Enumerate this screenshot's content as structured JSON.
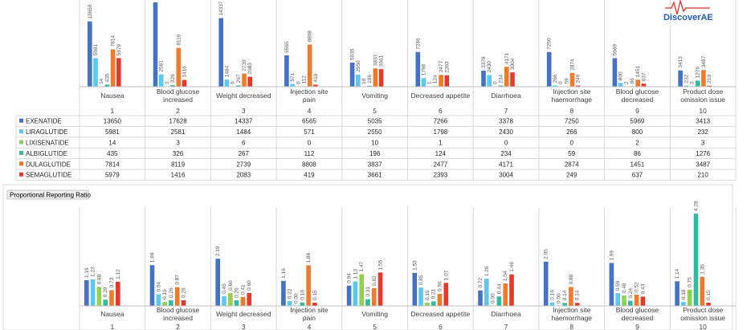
{
  "brand": {
    "logo_text": "DiscoverAE"
  },
  "colors": {
    "EXENATIDE": "#4472c4",
    "LIRAGLUTIDE": "#5bc8f0",
    "LIXISENATIDE": "#92d050",
    "ALBIGLUTIDE": "#33bba0",
    "DULAGLUTIDE": "#f07a28",
    "SEMAGLUTIDE": "#e8382a",
    "logo": "#1f5fbf",
    "logo_pulse": "#e03030"
  },
  "chart_data": [
    {
      "type": "bar",
      "title": "",
      "categories": [
        "Nausea",
        "Blood glucose increased",
        "Weight decreased",
        "Injection site pain",
        "Vomiting",
        "Decreased appetite",
        "Diarrhoea",
        "Injection site haemorrhage",
        "Blood glucose decreased",
        "Product dose omission issue"
      ],
      "category_numbers": [
        "1",
        "2",
        "3",
        "4",
        "5",
        "6",
        "7",
        "8",
        "9",
        "10"
      ],
      "series": [
        {
          "name": "EXENATIDE",
          "values": [
            13650,
            17628,
            14337,
            6565,
            5035,
            7266,
            3378,
            7250,
            5969,
            3413
          ]
        },
        {
          "name": "LIRAGLUTIDE",
          "values": [
            5981,
            2581,
            1484,
            571,
            2550,
            1798,
            2430,
            266,
            800,
            232
          ]
        },
        {
          "name": "LIXISENATIDE",
          "values": [
            14,
            3,
            6,
            0,
            10,
            1,
            0,
            0,
            2,
            3
          ]
        },
        {
          "name": "ALBIGLUTIDE",
          "values": [
            435,
            326,
            267,
            112,
            196,
            124,
            234,
            59,
            86,
            1276
          ]
        },
        {
          "name": "DULAGLUTIDE",
          "values": [
            7814,
            8119,
            2739,
            8808,
            3837,
            2477,
            4171,
            2874,
            1451,
            3487
          ]
        },
        {
          "name": "SEMAGLUTIDE",
          "values": [
            5979,
            1416,
            2083,
            419,
            3661,
            2393,
            3004,
            249,
            637,
            210
          ]
        }
      ],
      "data_table": true,
      "grid": true
    },
    {
      "type": "bar",
      "title": "Proportional Reporting Ratio",
      "categories": [
        "Nausea",
        "Blood glucose increased",
        "Weight decreased",
        "Injection site pain",
        "Vomiting",
        "Decreased appetite",
        "Diarrhoea",
        "Injection site haemorrhage",
        "Blood glucose decreased",
        "Product dose omission issue"
      ],
      "category_numbers": [
        "1",
        "2",
        "3",
        "4",
        "5",
        "6",
        "7",
        "8",
        "9",
        "10"
      ],
      "series": [
        {
          "name": "EXENATIDE",
          "values": [
            "1.19",
            "1.89",
            "2.19",
            "1.16",
            "0.94",
            "1.53",
            "0.72",
            "2.05",
            "1.99",
            "1.14"
          ]
        },
        {
          "name": "LIRAGLUTIDE",
          "values": [
            "1.23",
            "0.54",
            "0.45",
            "0.22",
            "1.13",
            "0.85",
            "1.26",
            "0.16",
            "0.59",
            "0.18"
          ]
        },
        {
          "name": "LIXISENATIDE",
          "values": [
            "0.88",
            "0.19",
            "0.60",
            "0.00",
            "1.47",
            "0.15",
            "0.00",
            "0.00",
            "0.48",
            "0.75"
          ]
        },
        {
          "name": "ALBIGLUTIDE",
          "values": [
            "0.29",
            "0.26",
            "0.26",
            "0.16",
            "0.31",
            "0.21",
            "0.44",
            "0.14",
            "0.24",
            "4.28"
          ]
        },
        {
          "name": "DULAGLUTIDE",
          "values": [
            "0.73",
            "0.87",
            "0.41",
            "1.88",
            "0.82",
            "0.56",
            "1.04",
            "0.88",
            "0.52",
            "1.35"
          ]
        },
        {
          "name": "SEMAGLUTIDE",
          "values": [
            "1.12",
            "0.26",
            "0.60",
            "0.15",
            "1.55",
            "1.07",
            "1.46",
            "0.14",
            "0.43",
            "0.15"
          ]
        }
      ],
      "grid": true
    }
  ]
}
